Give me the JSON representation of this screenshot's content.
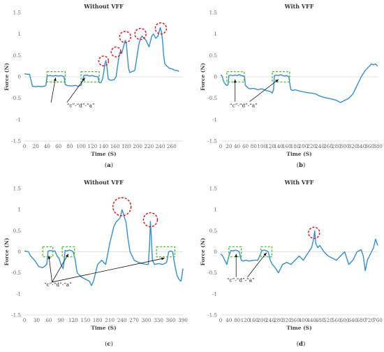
{
  "chart_data": [
    {
      "type": "line",
      "title": "Without VFF",
      "caption": "(a)",
      "xlabel": "Time (S)",
      "ylabel": "Force (N)",
      "xlim": [
        0,
        280
      ],
      "xticks": [
        0,
        20,
        40,
        60,
        80,
        100,
        120,
        140,
        160,
        180,
        200,
        220,
        240,
        260
      ],
      "ylim": [
        -1.5,
        1.5
      ],
      "yticks": [
        -1.5,
        -1,
        -0.5,
        0,
        0.5,
        1,
        1.5
      ],
      "grid": false,
      "annotation": "“c”-“d”-“a”",
      "x": [
        0,
        5,
        9,
        12,
        14,
        20,
        25,
        30,
        35,
        38,
        40,
        45,
        50,
        55,
        60,
        65,
        70,
        72,
        75,
        80,
        85,
        90,
        95,
        98,
        100,
        105,
        110,
        115,
        120,
        125,
        130,
        132,
        135,
        138,
        140,
        142,
        144,
        146,
        148,
        152,
        158,
        162,
        165,
        168,
        170,
        172,
        175,
        178,
        180,
        182,
        184,
        186,
        190,
        195,
        198,
        202,
        205,
        208,
        210,
        215,
        220,
        225,
        228,
        232,
        236,
        238,
        240,
        242,
        244,
        246,
        248,
        252,
        256,
        262,
        266,
        270,
        273
      ],
      "y": [
        0.07,
        0.06,
        0.06,
        -0.1,
        -0.22,
        -0.23,
        -0.22,
        -0.23,
        -0.22,
        -0.2,
        0.02,
        0.03,
        0.02,
        0.03,
        0.02,
        0.03,
        0.0,
        -0.18,
        -0.2,
        -0.21,
        -0.21,
        -0.2,
        -0.22,
        -0.2,
        -0.2,
        0.03,
        0.04,
        0.02,
        0.03,
        0.01,
        0.0,
        -0.13,
        -0.14,
        -0.05,
        0.1,
        0.3,
        0.38,
        0.2,
        -0.05,
        -0.08,
        -0.07,
        0.0,
        0.3,
        0.55,
        0.6,
        0.55,
        0.7,
        0.85,
        0.8,
        0.45,
        0.2,
        0.1,
        0.12,
        0.15,
        0.4,
        0.75,
        0.9,
        0.95,
        0.92,
        0.85,
        0.7,
        0.95,
        1.0,
        0.9,
        0.95,
        1.05,
        1.15,
        1.05,
        0.85,
        0.5,
        0.3,
        0.25,
        0.2,
        0.18,
        0.15,
        0.15,
        0.12
      ]
    },
    {
      "type": "line",
      "title": "With VFF",
      "caption": "(b)",
      "xlabel": "Time (S)",
      "ylabel": "Force (N)",
      "xlim": [
        0,
        380
      ],
      "xticks": [
        0,
        20,
        40,
        60,
        80,
        100,
        120,
        140,
        160,
        180,
        200,
        220,
        240,
        260,
        280,
        300,
        320,
        340,
        360,
        380
      ],
      "ylim": [
        -1.5,
        1.5
      ],
      "yticks": [
        -1.5,
        -1,
        -0.5,
        0,
        0.5,
        1,
        1.5
      ],
      "grid": false,
      "annotation": "“c”-“d”-“a”",
      "x": [
        0,
        3,
        8,
        12,
        15,
        18,
        20,
        25,
        30,
        35,
        40,
        45,
        50,
        55,
        58,
        60,
        65,
        70,
        80,
        90,
        100,
        110,
        120,
        125,
        128,
        130,
        135,
        140,
        145,
        150,
        155,
        160,
        165,
        168,
        170,
        175,
        180,
        190,
        200,
        210,
        220,
        230,
        240,
        250,
        260,
        270,
        280,
        290,
        300,
        310,
        320,
        330,
        340,
        350,
        355,
        360,
        365,
        370,
        375,
        380
      ],
      "y": [
        0.04,
        0.03,
        -0.12,
        -0.18,
        -0.2,
        -0.18,
        0.03,
        0.04,
        0.03,
        0.04,
        0.03,
        0.05,
        0.03,
        0.02,
        0.0,
        -0.2,
        -0.25,
        -0.28,
        -0.27,
        -0.3,
        -0.28,
        -0.32,
        -0.34,
        -0.38,
        -0.3,
        0.03,
        0.04,
        0.03,
        0.05,
        0.03,
        0.02,
        0.03,
        0.0,
        -0.2,
        -0.3,
        -0.32,
        -0.3,
        -0.33,
        -0.35,
        -0.37,
        -0.38,
        -0.4,
        -0.45,
        -0.48,
        -0.5,
        -0.52,
        -0.55,
        -0.6,
        -0.55,
        -0.5,
        -0.4,
        -0.2,
        0.0,
        0.15,
        0.2,
        0.25,
        0.3,
        0.28,
        0.3,
        0.25
      ]
    },
    {
      "type": "line",
      "title": "Without VFF",
      "caption": "(c)",
      "xlabel": "Time (S)",
      "ylabel": "Force (N)",
      "xlim": [
        0,
        390
      ],
      "xticks": [
        0,
        30,
        60,
        90,
        120,
        150,
        180,
        210,
        240,
        270,
        300,
        330,
        360,
        390
      ],
      "ylim": [
        -1.5,
        1.5
      ],
      "yticks": [
        -1.5,
        -1,
        -0.5,
        0,
        0.5,
        1,
        1.5
      ],
      "grid": false,
      "annotation": "“c”-“d”-“a”",
      "x": [
        0,
        10,
        15,
        25,
        35,
        45,
        55,
        58,
        62,
        70,
        75,
        80,
        85,
        90,
        95,
        98,
        100,
        105,
        110,
        115,
        120,
        125,
        128,
        130,
        140,
        150,
        160,
        165,
        170,
        175,
        180,
        190,
        200,
        210,
        220,
        225,
        230,
        235,
        238,
        240,
        242,
        245,
        250,
        255,
        260,
        270,
        280,
        290,
        300,
        305,
        308,
        310,
        312,
        315,
        320,
        330,
        340,
        345,
        350,
        355,
        360,
        365,
        368,
        372,
        375,
        380,
        385,
        388,
        390
      ],
      "y": [
        0.02,
        0.0,
        -0.1,
        -0.2,
        -0.35,
        -0.38,
        -0.3,
        0.01,
        0.03,
        0.02,
        0.02,
        -0.1,
        -0.15,
        -0.3,
        -0.4,
        -0.2,
        0.03,
        0.02,
        0.04,
        0.03,
        0.0,
        -0.2,
        -0.4,
        -0.5,
        -0.6,
        -0.65,
        -0.7,
        -0.8,
        -0.7,
        -0.5,
        -0.3,
        -0.2,
        -0.3,
        0.2,
        0.6,
        0.7,
        0.75,
        0.8,
        0.9,
        1.0,
        0.95,
        0.85,
        0.7,
        0.3,
        0.0,
        -0.2,
        -0.25,
        -0.28,
        -0.3,
        -0.3,
        0.2,
        0.72,
        0.4,
        -0.2,
        -0.3,
        -0.28,
        -0.3,
        -0.28,
        -0.25,
        0.0,
        0.02,
        0.0,
        -0.2,
        -0.4,
        -0.55,
        -0.65,
        -0.7,
        -0.55,
        -0.4
      ]
    },
    {
      "type": "line",
      "title": "With VFF",
      "caption": "(d)",
      "xlabel": "Time (S)",
      "ylabel": "Force (N)",
      "xlim": [
        0,
        760
      ],
      "xticks": [
        0,
        40,
        80,
        120,
        160,
        200,
        240,
        280,
        320,
        360,
        400,
        440,
        480,
        520,
        560,
        600,
        640,
        680,
        720,
        760
      ],
      "ylim": [
        -1.5,
        1.5
      ],
      "yticks": [
        -1.5,
        -1,
        -0.5,
        0,
        0.5,
        1,
        1.5
      ],
      "grid": false,
      "annotation": "“c”-“d”-“a”",
      "x": [
        0,
        10,
        20,
        30,
        40,
        50,
        60,
        70,
        80,
        90,
        100,
        110,
        120,
        140,
        160,
        180,
        200,
        210,
        220,
        230,
        240,
        250,
        260,
        280,
        300,
        320,
        340,
        360,
        380,
        400,
        420,
        440,
        450,
        455,
        460,
        470,
        480,
        500,
        520,
        540,
        560,
        580,
        600,
        620,
        640,
        660,
        680,
        690,
        700,
        710,
        720,
        730,
        740,
        750,
        760
      ],
      "y": [
        -0.05,
        -0.1,
        -0.2,
        -0.3,
        -0.1,
        0.03,
        0.02,
        0.04,
        0.03,
        0.0,
        -0.2,
        -0.22,
        -0.2,
        -0.22,
        -0.2,
        -0.2,
        0.03,
        0.04,
        0.03,
        0.0,
        -0.2,
        -0.3,
        -0.35,
        -0.5,
        -0.3,
        -0.25,
        -0.3,
        -0.2,
        -0.1,
        -0.2,
        -0.05,
        0.1,
        0.3,
        0.5,
        0.2,
        0.1,
        0.15,
        0.0,
        -0.1,
        -0.15,
        -0.2,
        -0.1,
        0.0,
        -0.3,
        -0.2,
        0.0,
        0.05,
        -0.1,
        -0.45,
        -0.2,
        -0.1,
        0.0,
        0.1,
        0.3,
        0.15
      ]
    }
  ]
}
